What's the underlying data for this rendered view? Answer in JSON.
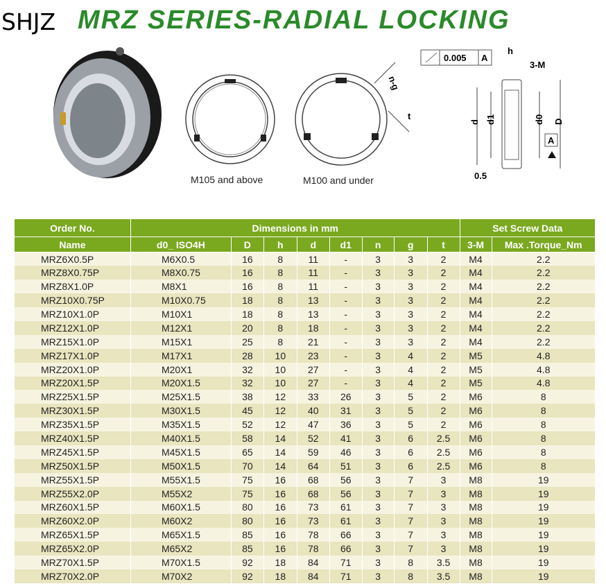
{
  "title": "MRZ SERIES-RADIAL LOCKING",
  "watermark": "SHJZ",
  "diagrams": {
    "label_left": "M105 and above",
    "label_right": "M100 and under",
    "tolerance": "0.005",
    "datum": "A",
    "h": "h",
    "screw": "3-M",
    "d": "d",
    "d1": "d1",
    "d0": "d0",
    "D": "D",
    "offset": "0.5",
    "ng": "n-g",
    "t": "t"
  },
  "table": {
    "group_headers": [
      "Order No.",
      "Dimensions in mm",
      "Set Screw Data"
    ],
    "columns": [
      "Name",
      "d0_ ISO4H",
      "D",
      "h",
      "d",
      "d1",
      "n",
      "g",
      "t",
      "3-M",
      "Max .Torque_Nm"
    ],
    "highlight_row": "MRZ20X1.0P",
    "highlight_color": "#f5de37",
    "header_color": "#7aa81f",
    "rows": [
      [
        "MRZ6X0.5P",
        "M6X0.5",
        "16",
        "8",
        "11",
        "-",
        "3",
        "3",
        "2",
        "M4",
        "2.2"
      ],
      [
        "MRZ8X0.75P",
        "M8X0.75",
        "16",
        "8",
        "11",
        "-",
        "3",
        "3",
        "2",
        "M4",
        "2.2"
      ],
      [
        "MRZ8X1.0P",
        "M8X1",
        "16",
        "8",
        "11",
        "-",
        "3",
        "3",
        "2",
        "M4",
        "2.2"
      ],
      [
        "MRZ10X0.75P",
        "M10X0.75",
        "18",
        "8",
        "13",
        "-",
        "3",
        "3",
        "2",
        "M4",
        "2.2"
      ],
      [
        "MRZ10X1.0P",
        "M10X1",
        "18",
        "8",
        "13",
        "-",
        "3",
        "3",
        "2",
        "M4",
        "2.2"
      ],
      [
        "MRZ12X1.0P",
        "M12X1",
        "20",
        "8",
        "18",
        "-",
        "3",
        "3",
        "2",
        "M4",
        "2.2"
      ],
      [
        "MRZ15X1.0P",
        "M15X1",
        "25",
        "8",
        "21",
        "-",
        "3",
        "3",
        "2",
        "M4",
        "2.2"
      ],
      [
        "MRZ17X1.0P",
        "M17X1",
        "28",
        "10",
        "23",
        "-",
        "3",
        "4",
        "2",
        "M5",
        "4.8"
      ],
      [
        "MRZ20X1.0P",
        "M20X1",
        "32",
        "10",
        "27",
        "-",
        "3",
        "4",
        "2",
        "M5",
        "4.8"
      ],
      [
        "MRZ20X1.5P",
        "M20X1.5",
        "32",
        "10",
        "27",
        "-",
        "3",
        "4",
        "2",
        "M5",
        "4.8"
      ],
      [
        "MRZ25X1.5P",
        "M25X1.5",
        "38",
        "12",
        "33",
        "26",
        "3",
        "5",
        "2",
        "M6",
        "8"
      ],
      [
        "MRZ30X1.5P",
        "M30X1.5",
        "45",
        "12",
        "40",
        "31",
        "3",
        "5",
        "2",
        "M6",
        "8"
      ],
      [
        "MRZ35X1.5P",
        "M35X1.5",
        "52",
        "12",
        "47",
        "36",
        "3",
        "5",
        "2",
        "M6",
        "8"
      ],
      [
        "MRZ40X1.5P",
        "M40X1.5",
        "58",
        "14",
        "52",
        "41",
        "3",
        "6",
        "2.5",
        "M6",
        "8"
      ],
      [
        "MRZ45X1.5P",
        "M45X1.5",
        "65",
        "14",
        "59",
        "46",
        "3",
        "6",
        "2.5",
        "M6",
        "8"
      ],
      [
        "MRZ50X1.5P",
        "M50X1.5",
        "70",
        "14",
        "64",
        "51",
        "3",
        "6",
        "2.5",
        "M6",
        "8"
      ],
      [
        "MRZ55X1.5P",
        "M55X1.5",
        "75",
        "16",
        "68",
        "56",
        "3",
        "7",
        "3",
        "M8",
        "19"
      ],
      [
        "MRZ55X2.0P",
        "M55X2",
        "75",
        "16",
        "68",
        "56",
        "3",
        "7",
        "3",
        "M8",
        "19"
      ],
      [
        "MRZ60X1.5P",
        "M60X1.5",
        "80",
        "16",
        "73",
        "61",
        "3",
        "7",
        "3",
        "M8",
        "19"
      ],
      [
        "MRZ60X2.0P",
        "M60X2",
        "80",
        "16",
        "73",
        "61",
        "3",
        "7",
        "3",
        "M8",
        "19"
      ],
      [
        "MRZ65X1.5P",
        "M65X1.5",
        "85",
        "16",
        "78",
        "66",
        "3",
        "7",
        "3",
        "M8",
        "19"
      ],
      [
        "MRZ65X2.0P",
        "M65X2",
        "85",
        "16",
        "78",
        "66",
        "3",
        "7",
        "3",
        "M8",
        "19"
      ],
      [
        "MRZ70X1.5P",
        "M70X1.5",
        "92",
        "18",
        "84",
        "71",
        "3",
        "8",
        "3.5",
        "M8",
        "19"
      ],
      [
        "MRZ70X2.0P",
        "M70X2",
        "92",
        "18",
        "84",
        "71",
        "3",
        "8",
        "3.5",
        "M8",
        "19"
      ]
    ]
  }
}
